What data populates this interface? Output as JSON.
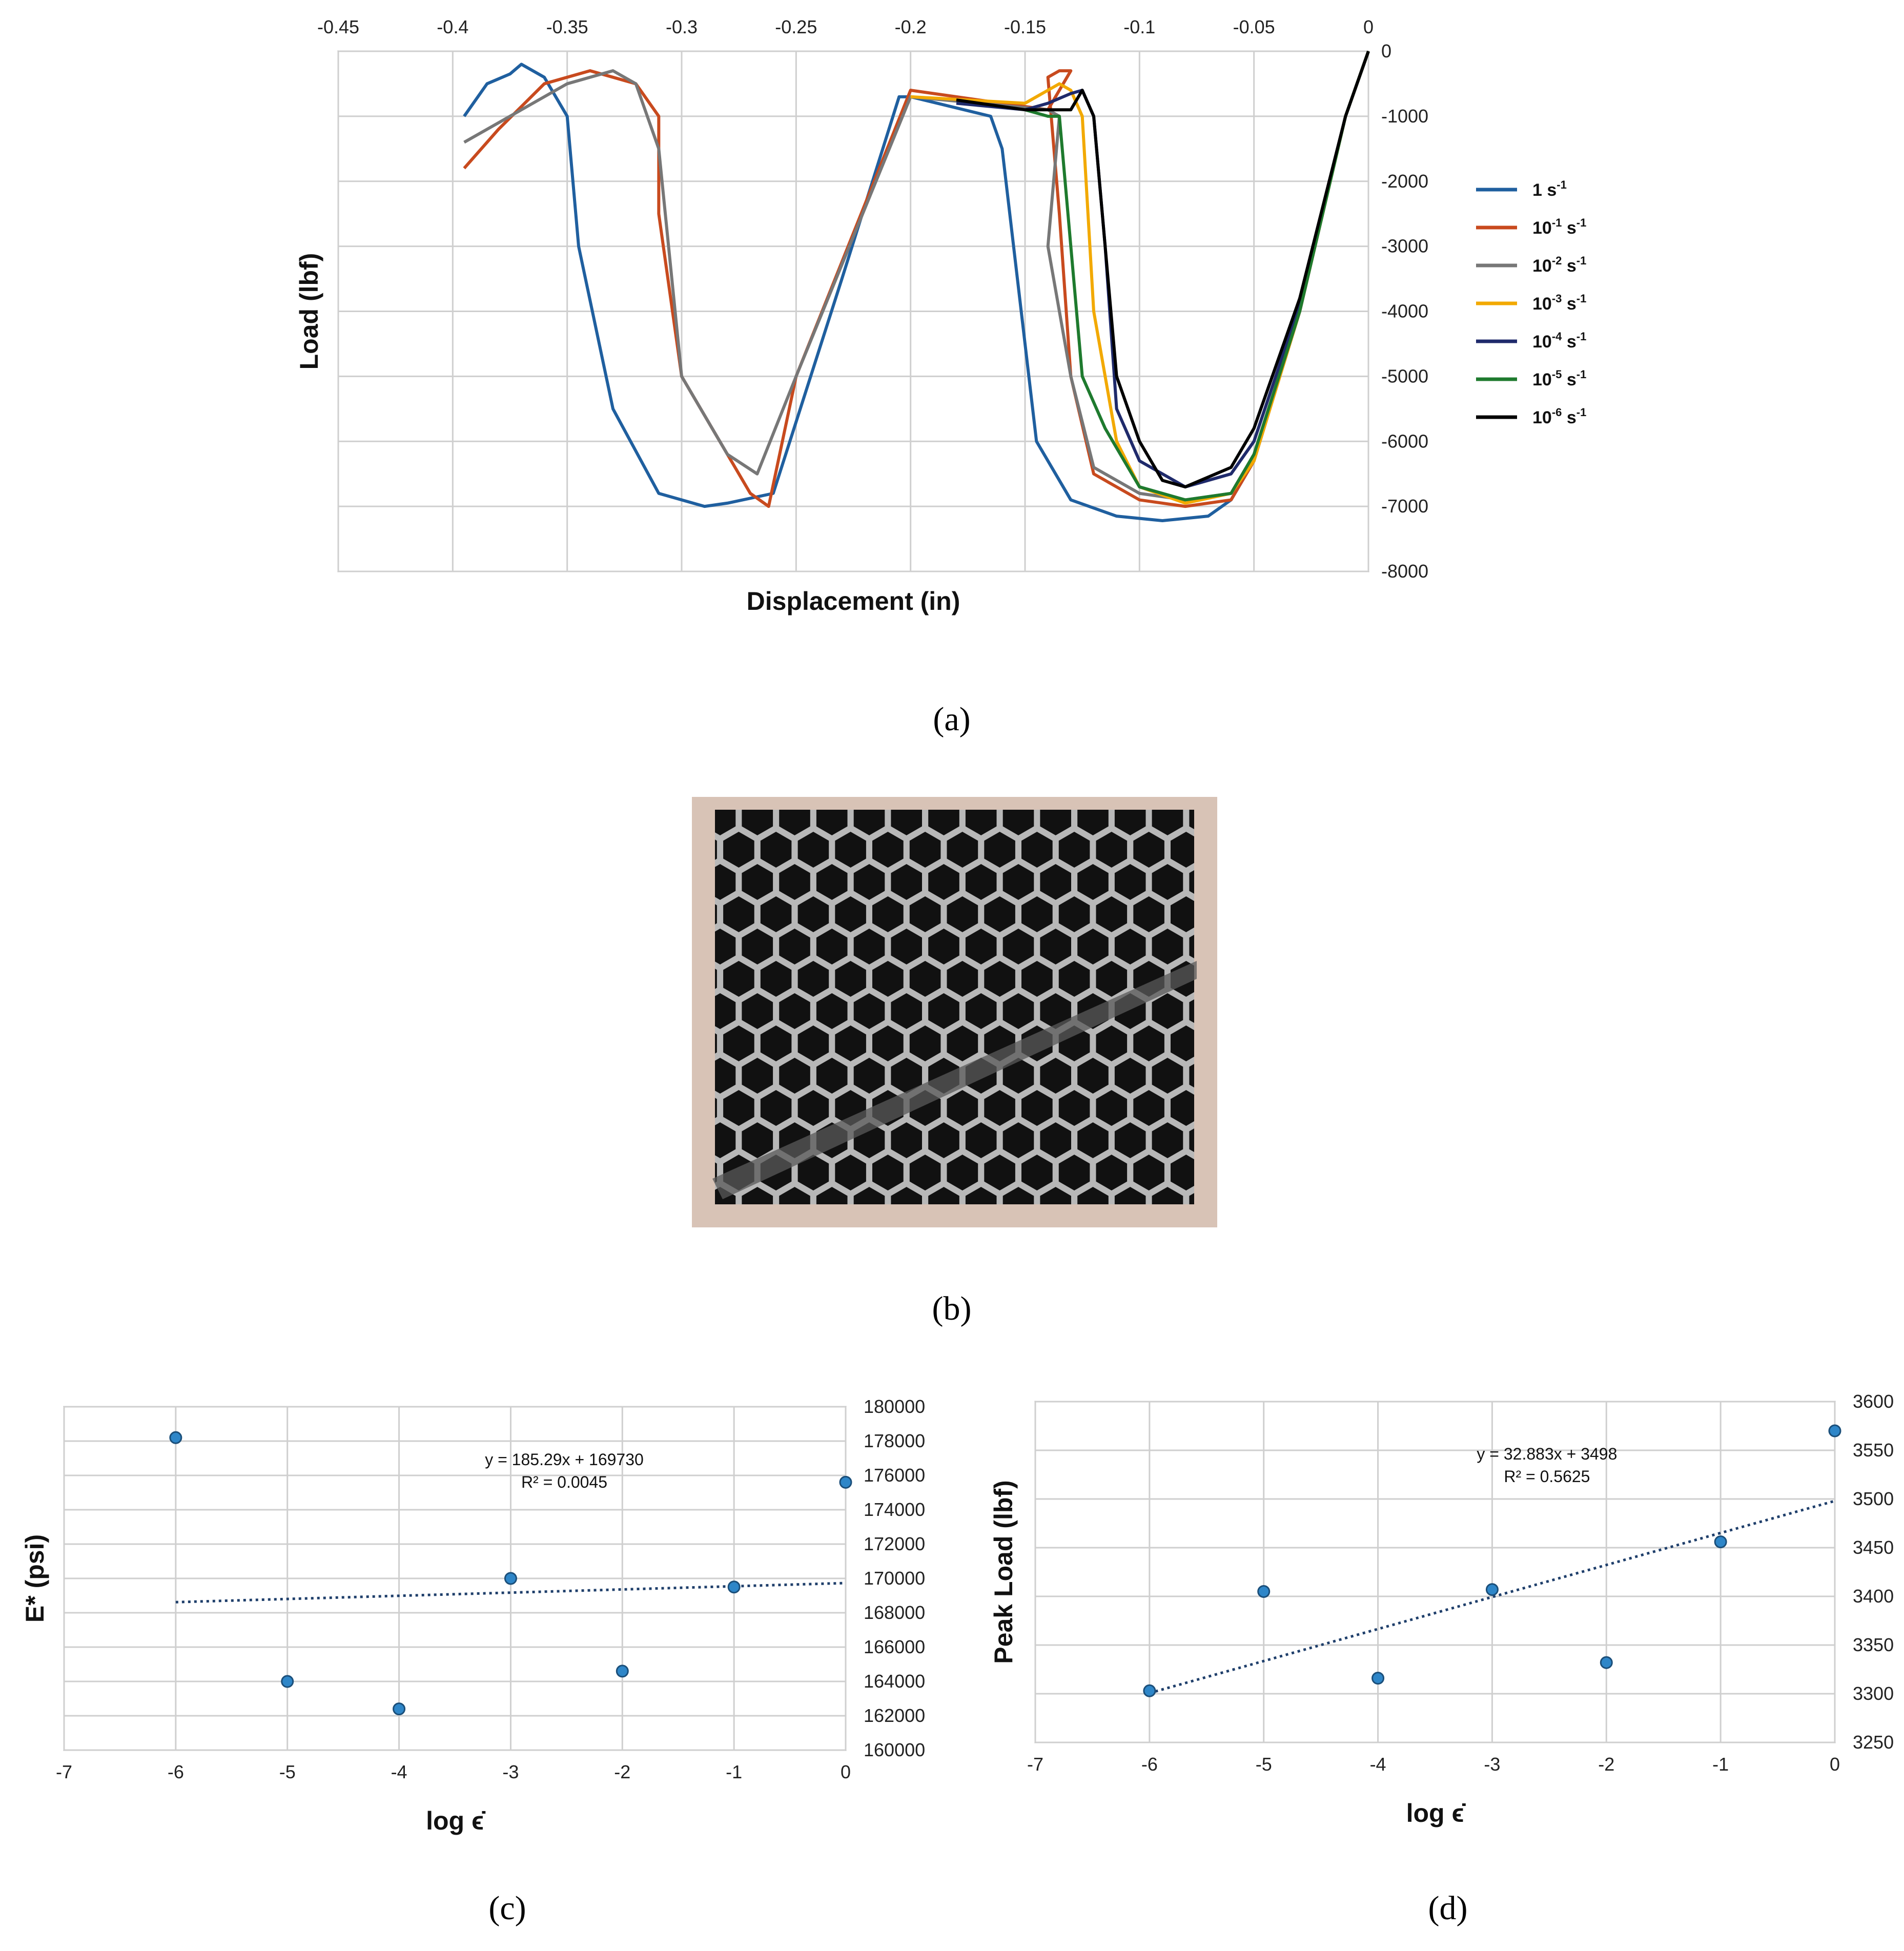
{
  "captions": {
    "a": "(a)",
    "b": "(b)",
    "c": "(c)",
    "d": "(d)"
  },
  "chart_data": [
    {
      "type": "line",
      "panel": "a",
      "xlabel": "Displacement (in)",
      "ylabel": "Load (lbf)",
      "xlim": [
        -0.45,
        0
      ],
      "ylim": [
        -8000,
        0
      ],
      "x_axis_position": "top",
      "y_axis_position": "right",
      "x_ticks": [
        "-0.45",
        "-0.4",
        "-0.35",
        "-0.3",
        "-0.25",
        "-0.2",
        "-0.15",
        "-0.1",
        "-0.05",
        "0"
      ],
      "y_ticks": [
        "0",
        "-1000",
        "-2000",
        "-3000",
        "-4000",
        "-5000",
        "-6000",
        "-7000",
        "-8000"
      ],
      "grid": true,
      "legend_position": "right",
      "series": [
        {
          "name": "1 s-1",
          "base": "1 s",
          "sup": "-1",
          "color": "#1f5f9f",
          "x": [
            0,
            -0.01,
            -0.03,
            -0.05,
            -0.06,
            -0.07,
            -0.09,
            -0.11,
            -0.13,
            -0.145,
            -0.15,
            -0.16,
            -0.165,
            -0.2,
            -0.205,
            -0.23,
            -0.26,
            -0.28,
            -0.29,
            -0.31,
            -0.33,
            -0.345,
            -0.35,
            -0.36,
            -0.37,
            -0.375,
            -0.385,
            -0.395
          ],
          "y": [
            0,
            -1000,
            -4000,
            -6300,
            -6900,
            -7150,
            -7220,
            -7150,
            -6900,
            -6000,
            -4500,
            -1500,
            -1000,
            -700,
            -700,
            -3500,
            -6800,
            -6950,
            -7000,
            -6800,
            -5500,
            -3000,
            -1000,
            -400,
            -200,
            -350,
            -500,
            -1000
          ]
        },
        {
          "name": "10-1 s-1",
          "base": "10",
          "sup": "-1",
          "color": "#c84a1e",
          "x": [
            0,
            -0.01,
            -0.03,
            -0.05,
            -0.06,
            -0.08,
            -0.1,
            -0.12,
            -0.13,
            -0.135,
            -0.14,
            -0.135,
            -0.13,
            -0.14,
            -0.2,
            -0.25,
            -0.262,
            -0.27,
            -0.3,
            -0.31,
            -0.31,
            -0.32,
            -0.34,
            -0.36,
            -0.38,
            -0.395
          ],
          "y": [
            0,
            -1000,
            -4000,
            -6300,
            -6900,
            -7000,
            -6900,
            -6500,
            -5000,
            -2500,
            -400,
            -300,
            -300,
            -900,
            -600,
            -5000,
            -7000,
            -6800,
            -5000,
            -2500,
            -1000,
            -500,
            -300,
            -500,
            -1200,
            -1800
          ]
        },
        {
          "name": "10-2 s-1",
          "base": "10",
          "sup": "-1",
          "supText": "-2",
          "color": "#777777",
          "x": [
            0,
            -0.01,
            -0.03,
            -0.05,
            -0.06,
            -0.08,
            -0.1,
            -0.12,
            -0.13,
            -0.14,
            -0.135,
            -0.14,
            -0.2,
            -0.25,
            -0.267,
            -0.28,
            -0.3,
            -0.31,
            -0.32,
            -0.33,
            -0.35,
            -0.37,
            -0.395
          ],
          "y": [
            0,
            -1000,
            -4000,
            -6200,
            -6800,
            -6900,
            -6800,
            -6400,
            -5000,
            -3000,
            -1000,
            -900,
            -700,
            -5000,
            -6500,
            -6200,
            -5000,
            -1500,
            -500,
            -300,
            -500,
            -900,
            -1400
          ]
        },
        {
          "name": "10-3 s-1",
          "base": "10",
          "sup": "-3",
          "color": "#f2a900",
          "x": [
            0,
            -0.01,
            -0.03,
            -0.05,
            -0.06,
            -0.08,
            -0.1,
            -0.11,
            -0.12,
            -0.125,
            -0.13,
            -0.135,
            -0.15,
            -0.2
          ],
          "y": [
            0,
            -1000,
            -4000,
            -6300,
            -6800,
            -6950,
            -6700,
            -6000,
            -4000,
            -1000,
            -600,
            -500,
            -800,
            -700
          ]
        },
        {
          "name": "10-4 s-1",
          "base": "10",
          "sup": "-4",
          "color": "#1f2a6b",
          "x": [
            0,
            -0.01,
            -0.03,
            -0.05,
            -0.06,
            -0.08,
            -0.1,
            -0.11,
            -0.115,
            -0.12,
            -0.125,
            -0.13,
            -0.14,
            -0.15,
            -0.18
          ],
          "y": [
            0,
            -1000,
            -3900,
            -6000,
            -6500,
            -6700,
            -6300,
            -5500,
            -3000,
            -1000,
            -600,
            -650,
            -800,
            -900,
            -800
          ]
        },
        {
          "name": "10-5 s-1",
          "base": "10",
          "sup": "-5",
          "color": "#1e7a2e",
          "x": [
            0,
            -0.01,
            -0.03,
            -0.05,
            -0.06,
            -0.08,
            -0.1,
            -0.115,
            -0.125,
            -0.13,
            -0.135,
            -0.14,
            -0.15
          ],
          "y": [
            0,
            -1000,
            -4000,
            -6200,
            -6800,
            -6900,
            -6700,
            -5800,
            -5000,
            -3000,
            -1000,
            -1000,
            -900
          ]
        },
        {
          "name": "10-6 s-1",
          "base": "10",
          "sup": "-6",
          "color": "#000000",
          "x": [
            0,
            -0.01,
            -0.03,
            -0.05,
            -0.06,
            -0.08,
            -0.09,
            -0.1,
            -0.11,
            -0.115,
            -0.12,
            -0.125,
            -0.13,
            -0.15,
            -0.18
          ],
          "y": [
            0,
            -1000,
            -3800,
            -5800,
            -6400,
            -6700,
            -6600,
            -6000,
            -5000,
            -3000,
            -1000,
            -600,
            -900,
            -900,
            -750
          ]
        }
      ]
    },
    {
      "type": "scatter",
      "panel": "c",
      "xlabel": "log ϵ̇",
      "ylabel": "E* (psi)",
      "xlim": [
        -7,
        0
      ],
      "ylim": [
        160000,
        180000
      ],
      "y_axis_position": "right",
      "x_ticks": [
        "-7",
        "-6",
        "-5",
        "-4",
        "-3",
        "-2",
        "-1",
        "0"
      ],
      "y_ticks": [
        "160000",
        "162000",
        "164000",
        "166000",
        "168000",
        "170000",
        "172000",
        "174000",
        "176000",
        "178000",
        "180000"
      ],
      "grid": true,
      "x": [
        -6,
        -5,
        -4,
        -3,
        -2,
        -1,
        0
      ],
      "y": [
        178200,
        164000,
        162400,
        170000,
        164600,
        169500,
        175600
      ],
      "trendline": {
        "slope": 185.29,
        "intercept": 169730,
        "x_from": -6,
        "x_to": 0
      },
      "equation": "y = 185.29x + 169730",
      "r2": "R² = 0.0045"
    },
    {
      "type": "scatter",
      "panel": "d",
      "xlabel": "log ϵ̇",
      "ylabel": "Peak Load (lbf)",
      "xlim": [
        -7,
        0
      ],
      "ylim": [
        3250,
        3600
      ],
      "y_axis_position": "right",
      "x_ticks": [
        "-7",
        "-6",
        "-5",
        "-4",
        "-3",
        "-2",
        "-1",
        "0"
      ],
      "y_ticks": [
        "3250",
        "3300",
        "3350",
        "3400",
        "3450",
        "3500",
        "3550",
        "3600"
      ],
      "grid": true,
      "x": [
        -6,
        -5,
        -4,
        -3,
        -2,
        -1,
        0
      ],
      "y": [
        3303,
        3405,
        3316,
        3407,
        3332,
        3456,
        3570
      ],
      "trendline": {
        "slope": 32.883,
        "intercept": 3498,
        "x_from": -6,
        "x_to": 0
      },
      "equation": "y = 32.883x + 3498",
      "r2": "R² = 0.5625"
    }
  ]
}
